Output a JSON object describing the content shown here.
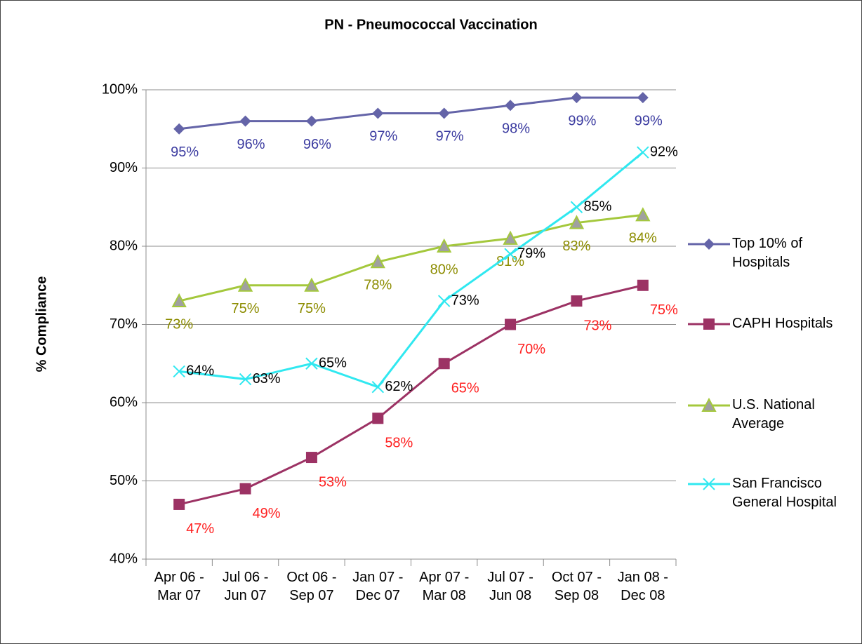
{
  "chart_data": {
    "type": "line",
    "title": "PN - Pneumococcal Vaccination",
    "y_label": "% Compliance",
    "categories": [
      "Apr 06 - Mar 07",
      "Jul 06 - Jun 07",
      "Oct 06 - Sep 07",
      "Jan 07 - Dec 07",
      "Apr 07 - Mar 08",
      "Jul 07 - Jun 08",
      "Oct 07 - Sep 08",
      "Jan 08 - Dec 08"
    ],
    "ylim": [
      40,
      100
    ],
    "yticks": [
      {
        "value": 40,
        "label": "40%"
      },
      {
        "value": 50,
        "label": "50%"
      },
      {
        "value": 60,
        "label": "60%"
      },
      {
        "value": 70,
        "label": "70%"
      },
      {
        "value": 80,
        "label": "80%"
      },
      {
        "value": 90,
        "label": "90%"
      },
      {
        "value": 100,
        "label": "100%"
      }
    ],
    "grid": true,
    "legend": "right",
    "series": [
      {
        "name": "Top 10% of Hospitals",
        "color": "#6464a8",
        "marker": "diamond",
        "label_color": "#3b3ba0",
        "values": [
          95,
          96,
          96,
          97,
          97,
          98,
          99,
          99
        ],
        "value_labels": [
          "95%",
          "96%",
          "96%",
          "97%",
          "97%",
          "98%",
          "99%",
          "99%"
        ]
      },
      {
        "name": "CAPH Hospitals",
        "color": "#9c3264",
        "marker": "square",
        "label_color": "#ff2020",
        "values": [
          47,
          49,
          53,
          58,
          65,
          70,
          73,
          75
        ],
        "value_labels": [
          "47%",
          "49%",
          "53%",
          "58%",
          "65%",
          "70%",
          "73%",
          "75%"
        ]
      },
      {
        "name": "U.S. National Average",
        "color": "#a4c83c",
        "marker": "triangle",
        "label_color": "#8c8c00",
        "values": [
          73,
          75,
          75,
          78,
          80,
          81,
          83,
          84
        ],
        "value_labels": [
          "73%",
          "75%",
          "75%",
          "78%",
          "80%",
          "81%",
          "83%",
          "84%"
        ]
      },
      {
        "name": "San Francisco General Hospital",
        "color": "#30e8f0",
        "marker": "x",
        "label_color": "#000000",
        "values": [
          64,
          63,
          65,
          62,
          73,
          79,
          85,
          92
        ],
        "value_labels": [
          "64%",
          "63%",
          "65%",
          "62%",
          "73%",
          "79%",
          "85%",
          "92%"
        ]
      }
    ]
  }
}
